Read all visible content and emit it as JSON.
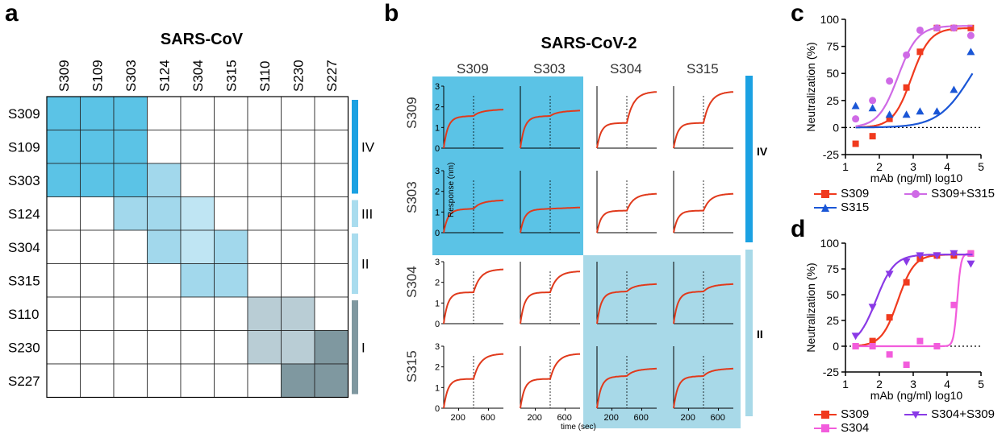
{
  "panels": {
    "a": "a",
    "b": "b",
    "c": "c",
    "d": "d"
  },
  "panel_a": {
    "title": "SARS-CoV",
    "columns": [
      "S309",
      "S109",
      "S303",
      "S124",
      "S304",
      "S315",
      "S110",
      "S230",
      "S227"
    ],
    "rows": [
      "S309",
      "S109",
      "S303",
      "S124",
      "S304",
      "S315",
      "S110",
      "S230",
      "S227"
    ],
    "colors": {
      "IV": "#5bc3e6",
      "III": "#a2d8ec",
      "II": "#bfe5f3",
      "I_light": "#b9cdd5",
      "I_dark": "#7f98a0"
    },
    "cells": [
      [
        "IV",
        "IV",
        "IV",
        "",
        "",
        "",
        "",
        "",
        ""
      ],
      [
        "IV",
        "IV",
        "IV",
        "",
        "",
        "",
        "",
        "",
        ""
      ],
      [
        "IV",
        "IV",
        "IV",
        "III",
        "",
        "",
        "",
        "",
        ""
      ],
      [
        "",
        "",
        "III",
        "III",
        "II",
        "",
        "",
        "",
        ""
      ],
      [
        "",
        "",
        "",
        "III",
        "II",
        "III",
        "",
        "",
        ""
      ],
      [
        "",
        "",
        "",
        "",
        "III",
        "III",
        "",
        "",
        ""
      ],
      [
        "",
        "",
        "",
        "",
        "",
        "",
        "I_light",
        "I_light",
        ""
      ],
      [
        "",
        "",
        "",
        "",
        "",
        "",
        "I_light",
        "I_light",
        "I_dark"
      ],
      [
        "",
        "",
        "",
        "",
        "",
        "",
        "",
        "I_dark",
        "I_dark"
      ]
    ],
    "groups": [
      {
        "label": "IV",
        "color": "#1ba1e2"
      },
      {
        "label": "III",
        "color": "#a9dcee"
      },
      {
        "label": "II",
        "color": "#a9dcee"
      },
      {
        "label": "I",
        "color": "#7f98a0"
      }
    ]
  },
  "panel_b": {
    "title": "SARS-CoV-2",
    "columns": [
      "S309",
      "S303",
      "S304",
      "S315"
    ],
    "rows": [
      "S309",
      "S303",
      "S304",
      "S315"
    ],
    "ylabel": "Response (nm)",
    "xlabel": "time (sec)",
    "yticks": [
      "0",
      "1",
      "2",
      "3"
    ],
    "xticks": [
      "200",
      "600"
    ],
    "block_colors": {
      "IV": "#5bc3e6",
      "II": "#a8d9e8"
    },
    "groups": [
      {
        "label": "IV",
        "color": "#1ba1e2"
      },
      {
        "label": "II",
        "color": "#a8d9e8"
      }
    ],
    "curves": [
      [
        {
          "plateau": 1.5,
          "second": 0.25
        },
        {
          "plateau": 1.5,
          "second": 0.2
        },
        {
          "plateau": 1.2,
          "second": 1.5
        },
        {
          "plateau": 1.2,
          "second": 1.5
        }
      ],
      [
        {
          "plateau": 1.1,
          "second": 0.35
        },
        {
          "plateau": 1.1,
          "second": 0.0
        },
        {
          "plateau": 1.05,
          "second": 0.8
        },
        {
          "plateau": 1.05,
          "second": 0.8
        }
      ],
      [
        {
          "plateau": 1.5,
          "second": 1.1
        },
        {
          "plateau": 1.5,
          "second": 1.0
        },
        {
          "plateau": 1.5,
          "second": 0.3
        },
        {
          "plateau": 1.5,
          "second": 0.3
        }
      ],
      [
        {
          "plateau": 1.4,
          "second": 1.2
        },
        {
          "plateau": 1.4,
          "second": 1.2
        },
        {
          "plateau": 1.5,
          "second": 0.3
        },
        {
          "plateau": 1.5,
          "second": 0.3
        }
      ]
    ]
  },
  "chart_data": [
    {
      "type": "scatter",
      "panel": "c",
      "xlabel": "mAb (ng/ml) log10",
      "ylabel": "Neutralization (%)",
      "xlim": [
        1,
        5
      ],
      "ylim": [
        -25,
        100
      ],
      "xticks": [
        1,
        2,
        3,
        4,
        5
      ],
      "yticks": [
        -25,
        0,
        25,
        50,
        75,
        100
      ],
      "series": [
        {
          "name": "S309",
          "color": "#f03a1e",
          "marker": "square",
          "x": [
            1.3,
            1.8,
            2.3,
            2.8,
            3.2,
            3.7,
            4.2,
            4.7
          ],
          "y": [
            -15,
            -8,
            8,
            37,
            70,
            92,
            92,
            92
          ],
          "fit": {
            "bottom": 0,
            "top": 92,
            "ec50": 2.95,
            "hill": 1.6
          }
        },
        {
          "name": "S315",
          "color": "#1a56d6",
          "marker": "triangle",
          "x": [
            1.3,
            1.8,
            2.3,
            2.8,
            3.2,
            3.7,
            4.2,
            4.7
          ],
          "y": [
            20,
            18,
            12,
            12,
            15,
            15,
            35,
            70
          ],
          "fit": {
            "bottom": 0,
            "top": 95,
            "ec50": 4.7,
            "hill": 0.9
          }
        },
        {
          "name": "S309+S315",
          "color": "#cf6ae6",
          "marker": "circle",
          "x": [
            1.3,
            1.8,
            2.3,
            2.8,
            3.2,
            3.7,
            4.2,
            4.7
          ],
          "y": [
            8,
            25,
            43,
            67,
            90,
            92,
            92,
            85
          ],
          "fit": {
            "bottom": 0,
            "top": 94,
            "ec50": 2.55,
            "hill": 1.5
          }
        }
      ]
    },
    {
      "type": "scatter",
      "panel": "d",
      "xlabel": "mAb (ng/ml) log10",
      "ylabel": "Neutralization (%)",
      "xlim": [
        1,
        5
      ],
      "ylim": [
        -25,
        100
      ],
      "xticks": [
        1,
        2,
        3,
        4,
        5
      ],
      "yticks": [
        -25,
        0,
        25,
        50,
        75,
        100
      ],
      "series": [
        {
          "name": "S309",
          "color": "#f03a1e",
          "marker": "square",
          "x": [
            1.3,
            1.8,
            2.3,
            2.8,
            3.2,
            3.7,
            4.2,
            4.7
          ],
          "y": [
            0,
            5,
            28,
            62,
            85,
            88,
            88,
            90
          ],
          "fit": {
            "bottom": 0,
            "top": 89,
            "ec50": 2.55,
            "hill": 1.8
          }
        },
        {
          "name": "S304",
          "color": "#f25cdc",
          "marker": "square",
          "x": [
            1.3,
            1.8,
            2.3,
            2.8,
            3.2,
            3.7,
            4.2,
            4.7
          ],
          "y": [
            0,
            0,
            -8,
            -18,
            5,
            0,
            40,
            90
          ],
          "fit": {
            "bottom": 0,
            "top": 90,
            "ec50": 4.3,
            "hill": 8
          }
        },
        {
          "name": "S304+S309",
          "color": "#8a3ae6",
          "marker": "triangle",
          "x": [
            1.3,
            1.8,
            2.3,
            2.8,
            3.2,
            3.7,
            4.2,
            4.7
          ],
          "y": [
            10,
            38,
            70,
            82,
            88,
            88,
            90,
            80
          ],
          "fit": {
            "bottom": 0,
            "top": 89,
            "ec50": 1.9,
            "hill": 1.6
          }
        }
      ]
    }
  ]
}
